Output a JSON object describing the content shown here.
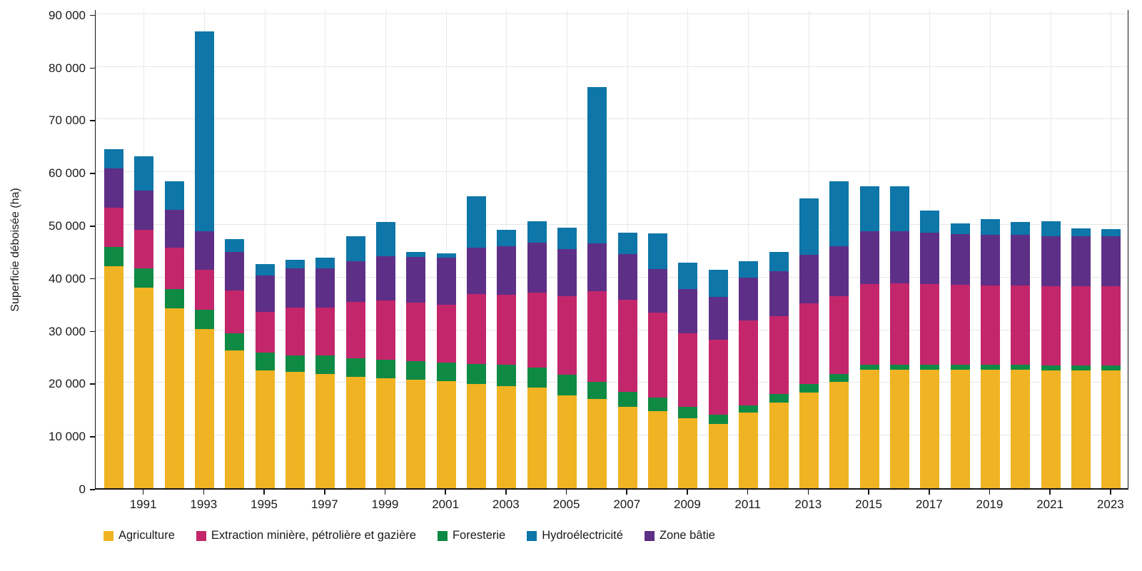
{
  "y_axis": {
    "title": "Superficie déboisée (ha)",
    "min": 0,
    "max": 90000,
    "tick_step": 10000,
    "tick_labels": [
      "0",
      "10 000",
      "20 000",
      "30 000",
      "40 000",
      "50 000",
      "60 000",
      "70 000",
      "80 000",
      "90 000"
    ]
  },
  "x_axis": {
    "labeled_years": [
      "1991",
      "1993",
      "1995",
      "1997",
      "1999",
      "2001",
      "2003",
      "2005",
      "2007",
      "2009",
      "2011",
      "2013",
      "2015",
      "2017",
      "2019",
      "2021",
      "2023"
    ]
  },
  "chart_data": {
    "type": "bar",
    "stacked": true,
    "title": "",
    "xlabel": "",
    "ylabel": "Superficie déboisée (ha)",
    "ylim": [
      0,
      90000
    ],
    "grid": true,
    "legend_position": "bottom",
    "categories": [
      "1990",
      "1991",
      "1992",
      "1993",
      "1994",
      "1995",
      "1996",
      "1997",
      "1998",
      "1999",
      "2000",
      "2001",
      "2002",
      "2003",
      "2004",
      "2005",
      "2006",
      "2007",
      "2008",
      "2009",
      "2010",
      "2011",
      "2012",
      "2013",
      "2014",
      "2015",
      "2016",
      "2017",
      "2018",
      "2019",
      "2020",
      "2021",
      "2022",
      "2023"
    ],
    "series": [
      {
        "name": "Agriculture",
        "color": "#F0B323",
        "values": [
          42200,
          38100,
          34100,
          30200,
          26100,
          22300,
          22050,
          21650,
          21200,
          20850,
          20650,
          20300,
          19800,
          19400,
          19050,
          17650,
          17000,
          15500,
          14600,
          13250,
          12200,
          14300,
          16300,
          18100,
          20250,
          22450,
          22450,
          22450,
          22450,
          22450,
          22450,
          22350,
          22350,
          22350
        ]
      },
      {
        "name": "Foresterie",
        "color": "#0F8A44",
        "values": [
          3600,
          3600,
          3650,
          3650,
          3250,
          3400,
          3200,
          3600,
          3500,
          3500,
          3500,
          3550,
          3750,
          4050,
          3850,
          3850,
          3250,
          2800,
          2600,
          2200,
          1800,
          1450,
          1550,
          1700,
          1400,
          1000,
          1000,
          1000,
          1000,
          1000,
          1000,
          1000,
          1000,
          1000
        ]
      },
      {
        "name": "Extraction minière, pétrolière et gazière",
        "color": "#C4266B",
        "values": [
          7400,
          7300,
          7850,
          7550,
          8150,
          7750,
          9000,
          9100,
          10650,
          11250,
          11100,
          10950,
          13350,
          13300,
          14200,
          14900,
          17100,
          17500,
          16100,
          13900,
          14200,
          16100,
          14850,
          15350,
          14850,
          15300,
          15450,
          15300,
          15150,
          15000,
          15000,
          15000,
          15000,
          15000
        ]
      },
      {
        "name": "Zone bâtie",
        "color": "#5E2F87",
        "values": [
          7450,
          7550,
          7300,
          7450,
          7300,
          6950,
          7450,
          7450,
          7750,
          8500,
          8700,
          9000,
          8700,
          9150,
          9500,
          9000,
          9150,
          8700,
          8250,
          8450,
          8150,
          8150,
          8550,
          9100,
          9450,
          10000,
          9950,
          9800,
          9700,
          9700,
          9600,
          9550,
          9550,
          9500
        ]
      },
      {
        "name": "Hydroélectricité",
        "color": "#0E76A8",
        "values": [
          3700,
          6400,
          5350,
          37850,
          2550,
          2150,
          1650,
          2000,
          4700,
          6500,
          850,
          850,
          9850,
          3100,
          4100,
          4050,
          29600,
          3950,
          6800,
          5050,
          5050,
          3100,
          3650,
          10800,
          12350,
          8600,
          8500,
          4100,
          2000,
          2950,
          2450,
          2800,
          1400,
          1350
        ]
      }
    ],
    "legend_order": [
      "Agriculture",
      "Extraction minière, pétrolière et gazière",
      "Foresterie",
      "Hydroélectricité",
      "Zone bâtie"
    ]
  },
  "colors": {
    "agriculture": "#F0B323",
    "extraction": "#C4266B",
    "foresterie": "#0F8A44",
    "hydroelectricite": "#0E76A8",
    "zone_batie": "#5E2F87",
    "gridline": "#e6e6e6",
    "axis": "#141414"
  }
}
